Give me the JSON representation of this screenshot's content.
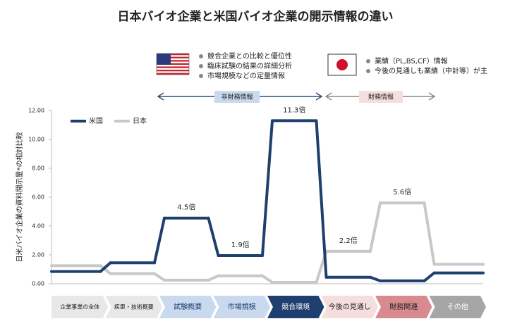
{
  "chart_data": {
    "type": "step-line",
    "title": "日本バイオ企業と米国バイオ企業の開示情報の違い",
    "y_label": "日米バイオ企業の資料開示量*の相対比較",
    "us_notes": [
      "競合企業との比較と優位性",
      "臨床試験の結果の詳細分析",
      "市場規模などの定量情報"
    ],
    "jp_notes": [
      "業績（PL,BS,CF）情報",
      "今後の見通しも業績（中計等）が主"
    ],
    "nonfinancial_label": "非財務情報",
    "financial_label": "財務情報",
    "categories": [
      "企業事業の全体",
      "疾患・技術概要",
      "試験概要",
      "市場規模",
      "競合環境",
      "今後の見通し",
      "財務関連",
      "その他"
    ],
    "series": [
      {
        "name": "米国",
        "color": "#1f3f6e",
        "values": [
          0.85,
          1.45,
          4.55,
          1.95,
          11.3,
          0.45,
          0.2,
          0.75
        ]
      },
      {
        "name": "日本",
        "color": "#c8c8c8",
        "values": [
          1.25,
          0.7,
          0.25,
          0.55,
          0.1,
          2.25,
          5.6,
          1.35
        ]
      }
    ],
    "ratio_labels": [
      null,
      null,
      "4.5倍",
      "1.9倍",
      "11.3倍",
      "2.2倍",
      "5.6倍",
      null
    ],
    "ylim": [
      0,
      12
    ],
    "yticks": [
      {
        "value": 0,
        "label": "0.00"
      },
      {
        "value": 2,
        "label": "2.00"
      },
      {
        "value": 4,
        "label": "4.00"
      },
      {
        "value": 6,
        "label": "6.00"
      },
      {
        "value": 8,
        "label": "8.00"
      },
      {
        "value": 10,
        "label": "10.00"
      },
      {
        "value": 12,
        "label": "12.00"
      }
    ],
    "grid": false
  }
}
